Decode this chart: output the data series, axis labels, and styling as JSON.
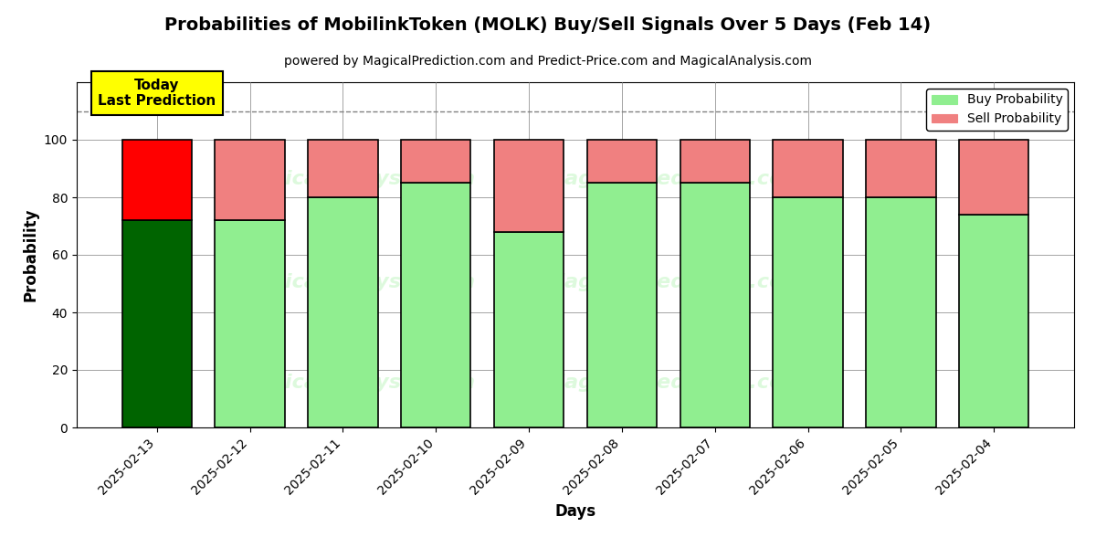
{
  "title": "Probabilities of MobilinkToken (MOLK) Buy/Sell Signals Over 5 Days (Feb 14)",
  "subtitle": "powered by MagicalPrediction.com and Predict-Price.com and MagicalAnalysis.com",
  "xlabel": "Days",
  "ylabel": "Probability",
  "dates": [
    "2025-02-13",
    "2025-02-12",
    "2025-02-11",
    "2025-02-10",
    "2025-02-09",
    "2025-02-08",
    "2025-02-07",
    "2025-02-06",
    "2025-02-05",
    "2025-02-04"
  ],
  "buy_values": [
    72,
    72,
    80,
    85,
    68,
    85,
    85,
    80,
    80,
    74
  ],
  "sell_values": [
    28,
    28,
    20,
    15,
    32,
    15,
    15,
    20,
    20,
    26
  ],
  "today_buy_color": "#006400",
  "today_sell_color": "#FF0000",
  "buy_color": "#90EE90",
  "sell_color": "#F08080",
  "today_label_bg": "#FFFF00",
  "today_label_text": "Today\nLast Prediction",
  "legend_buy": "Buy Probability",
  "legend_sell": "Sell Probability",
  "ylim": [
    0,
    120
  ],
  "dashed_line_y": 110,
  "bar_width": 0.75,
  "figsize": [
    12.0,
    6.0
  ],
  "dpi": 100,
  "watermark_color": "#90EE90",
  "watermark_alpha": 0.3,
  "edge_color": "#000000",
  "edge_linewidth": 1.2,
  "yticks": [
    0,
    20,
    40,
    60,
    80,
    100
  ]
}
